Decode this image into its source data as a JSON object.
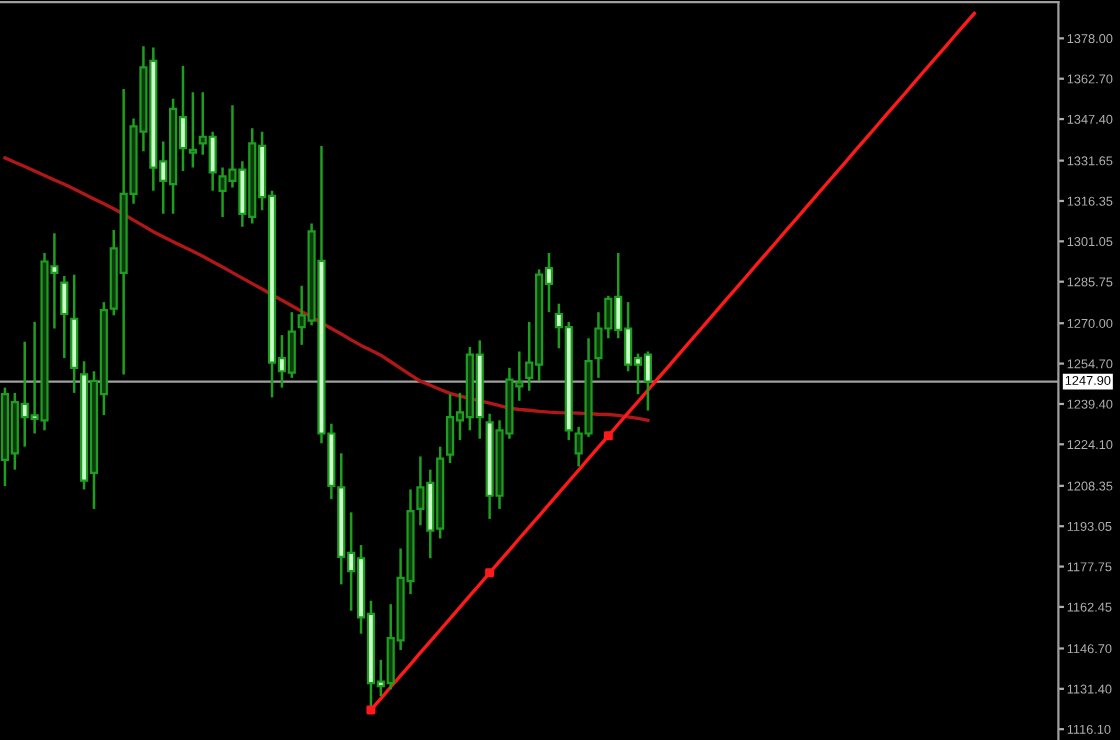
{
  "chart_data": {
    "type": "candlestick",
    "categories": [
      null,
      null,
      null,
      null,
      null,
      null,
      null,
      null,
      null,
      null,
      null,
      null,
      null,
      null,
      null,
      null,
      null,
      null,
      null,
      null,
      null,
      null,
      null,
      null,
      null,
      null,
      null,
      null,
      null,
      null,
      null,
      null,
      null,
      null,
      null,
      null,
      null,
      null,
      null,
      null,
      null,
      null,
      null,
      null,
      null,
      null,
      null,
      null,
      null,
      null,
      null,
      null,
      null,
      null,
      null,
      null,
      null,
      null,
      null,
      null,
      null,
      null,
      null,
      null,
      null,
      null,
      null,
      null,
      null,
      null,
      null,
      null,
      null,
      null,
      null,
      null,
      null,
      null,
      null,
      null,
      null,
      null,
      null,
      null,
      null,
      null,
      null,
      null,
      null,
      null,
      null,
      null,
      null,
      null,
      null,
      null,
      null,
      null,
      null,
      null,
      null,
      null,
      null,
      null,
      null,
      null,
      null
    ],
    "ohlc": [
      [
        1218.2,
        1245.6,
        1208.3,
        1243.1
      ],
      [
        1220.7,
        1243.6,
        1214.5,
        1240.1
      ],
      [
        1239.4,
        1263.0,
        1223.2,
        1234.4
      ],
      [
        1235.1,
        1270.5,
        1228.2,
        1233.7
      ],
      [
        1233.2,
        1296.6,
        1229.4,
        1293.4
      ],
      [
        1291.6,
        1304.1,
        1268.0,
        1289.1
      ],
      [
        1285.4,
        1287.9,
        1256.8,
        1273.5
      ],
      [
        1271.7,
        1288.4,
        1243.6,
        1253.1
      ],
      [
        1250.6,
        1255.6,
        1207.0,
        1210.3
      ],
      [
        1213.3,
        1251.8,
        1199.6,
        1248.1
      ],
      [
        1243.1,
        1278.0,
        1235.2,
        1275.0
      ],
      [
        1275.5,
        1305.3,
        1273.0,
        1298.4
      ],
      [
        1289.1,
        1358.8,
        1250.6,
        1319.0
      ],
      [
        1319.0,
        1347.6,
        1315.3,
        1344.6
      ],
      [
        1342.6,
        1375.0,
        1335.2,
        1367.0
      ],
      [
        1369.5,
        1374.5,
        1320.2,
        1329.0
      ],
      [
        1331.4,
        1338.9,
        1311.5,
        1324.0
      ],
      [
        1322.7,
        1355.1,
        1311.5,
        1351.3
      ],
      [
        1348.1,
        1367.5,
        1327.7,
        1336.4
      ],
      [
        1334.7,
        1357.6,
        1329.0,
        1335.7
      ],
      [
        1338.2,
        1357.6,
        1333.9,
        1340.7
      ],
      [
        1340.7,
        1342.6,
        1320.2,
        1327.2
      ],
      [
        1320.2,
        1329.0,
        1310.3,
        1325.7
      ],
      [
        1324.0,
        1352.6,
        1321.5,
        1328.2
      ],
      [
        1328.2,
        1331.4,
        1306.6,
        1311.5
      ],
      [
        1310.3,
        1343.9,
        1307.8,
        1338.2
      ],
      [
        1337.2,
        1342.6,
        1312.8,
        1317.8
      ],
      [
        1318.3,
        1320.2,
        1241.9,
        1255.1
      ],
      [
        1256.8,
        1265.5,
        1245.6,
        1251.8
      ],
      [
        1251.3,
        1274.2,
        1249.3,
        1266.8
      ],
      [
        1268.5,
        1284.2,
        1261.8,
        1273.0
      ],
      [
        1271.0,
        1307.8,
        1269.2,
        1304.8
      ],
      [
        1293.6,
        1337.2,
        1224.5,
        1228.2
      ],
      [
        1228.2,
        1231.9,
        1203.3,
        1208.3
      ],
      [
        1207.8,
        1220.7,
        1171.0,
        1181.4
      ],
      [
        1182.9,
        1198.3,
        1161.0,
        1176.0
      ],
      [
        1180.9,
        1185.9,
        1152.3,
        1158.5
      ],
      [
        1159.8,
        1164.8,
        1123.7,
        1133.6
      ],
      [
        1134.1,
        1142.4,
        1128.6,
        1132.4
      ],
      [
        1133.6,
        1163.5,
        1131.2,
        1150.6
      ],
      [
        1149.8,
        1184.6,
        1146.1,
        1173.5
      ],
      [
        1172.2,
        1207.0,
        1167.3,
        1198.8
      ],
      [
        1199.6,
        1219.5,
        1193.4,
        1207.8
      ],
      [
        1209.5,
        1214.5,
        1180.9,
        1191.4
      ],
      [
        1192.1,
        1223.2,
        1188.4,
        1218.7
      ],
      [
        1220.2,
        1243.1,
        1217.0,
        1234.4
      ],
      [
        1233.2,
        1243.6,
        1225.7,
        1236.2
      ],
      [
        1234.4,
        1261.0,
        1229.4,
        1258.1
      ],
      [
        1258.1,
        1263.5,
        1226.2,
        1234.4
      ],
      [
        1232.4,
        1235.7,
        1195.8,
        1204.6
      ],
      [
        1204.6,
        1233.2,
        1199.6,
        1229.4
      ],
      [
        1228.2,
        1253.1,
        1226.2,
        1248.6
      ],
      [
        1246.1,
        1259.3,
        1240.6,
        1247.6
      ],
      [
        1249.3,
        1270.5,
        1244.4,
        1255.1
      ],
      [
        1254.3,
        1290.4,
        1248.1,
        1288.4
      ],
      [
        1290.9,
        1296.6,
        1274.2,
        1284.9
      ],
      [
        1273.5,
        1277.4,
        1260.5,
        1268.5
      ],
      [
        1268.5,
        1270.5,
        1225.7,
        1229.4
      ],
      [
        1220.7,
        1230.7,
        1215.7,
        1228.2
      ],
      [
        1228.2,
        1264.3,
        1226.9,
        1255.6
      ],
      [
        1256.8,
        1274.2,
        1249.3,
        1268.0
      ],
      [
        1268.0,
        1280.4,
        1264.3,
        1279.2
      ],
      [
        1280.0,
        1296.6,
        1264.3,
        1267.5
      ],
      [
        1268.0,
        1278.0,
        1251.8,
        1254.3
      ],
      [
        1256.8,
        1258.5,
        1243.1,
        1254.3
      ],
      [
        1258.1,
        1259.3,
        1236.9,
        1247.9
      ],
      null,
      null,
      null,
      null,
      null,
      null,
      null,
      null,
      null,
      null,
      null,
      null,
      null,
      null,
      null,
      null,
      null,
      null,
      null,
      null,
      null,
      null,
      null,
      null,
      null,
      null,
      null,
      null,
      null,
      null,
      null,
      null,
      null,
      null,
      null,
      null,
      null,
      null,
      null,
      null,
      null
    ],
    "color": "#1e9e1e",
    "colors": [
      "#0f3a0f",
      "#0f3a0f",
      "#ccffcc",
      "#ccffcc",
      "#0f3a0f",
      "#ccffcc",
      "#ccffcc",
      "#ccffcc",
      "#ccffcc",
      "#0f3a0f",
      "#0f3a0f",
      "#0f3a0f",
      "#0f3a0f",
      "#0f3a0f",
      "#0f3a0f",
      "#ccffcc",
      "#ccffcc",
      "#0f3a0f",
      "#ccffcc",
      "#0f3a0f",
      "#0f3a0f",
      "#ccffcc",
      "#0f3a0f",
      "#0f3a0f",
      "#ccffcc",
      "#0f3a0f",
      "#ccffcc",
      "#ccffcc",
      "#ccffcc",
      "#0f3a0f",
      "#0f3a0f",
      "#0f3a0f",
      "#ccffcc",
      "#ccffcc",
      "#ccffcc",
      "#ccffcc",
      "#ccffcc",
      "#ccffcc",
      "#ccffcc",
      "#0f3a0f",
      "#0f3a0f",
      "#0f3a0f",
      "#0f3a0f",
      "#ccffcc",
      "#0f3a0f",
      "#0f3a0f",
      "#0f3a0f",
      "#0f3a0f",
      "#ccffcc",
      "#ccffcc",
      "#0f3a0f",
      "#0f3a0f",
      "#0f3a0f",
      "#0f3a0f",
      "#0f3a0f",
      "#ccffcc",
      "#ccffcc",
      "#ccffcc",
      "#0f3a0f",
      "#0f3a0f",
      "#0f3a0f",
      "#0f3a0f",
      "#ccffcc",
      "#ccffcc",
      "#ccffcc",
      "#ccffcc",
      null,
      null,
      null,
      null,
      null,
      null,
      null,
      null,
      null,
      null,
      null,
      null,
      null,
      null,
      null,
      null,
      null,
      null,
      null,
      null,
      null,
      null,
      null,
      null,
      null,
      null,
      null,
      null,
      null,
      null,
      null,
      null,
      null,
      null,
      null,
      null,
      null,
      null,
      null,
      null,
      null
    ],
    "series": [
      {
        "type": "line",
        "color": "#b01818",
        "values": [
          1332.7,
          1331.0,
          1329.4,
          1327.7,
          1326.0,
          1324.3,
          1322.7,
          1320.9,
          1319.0,
          1317.1,
          1315.3,
          1313.4,
          1311.3,
          1309.1,
          1306.9,
          1304.7,
          1302.8,
          1300.9,
          1299.1,
          1297.3,
          1295.4,
          1293.3,
          1291.3,
          1289.2,
          1287.1,
          1285.0,
          1283.0,
          1280.8,
          1278.7,
          1276.6,
          1274.5,
          1272.3,
          1270.2,
          1268.0,
          1265.9,
          1263.7,
          1261.6,
          1259.8,
          1257.9,
          1255.4,
          1252.9,
          1250.4,
          1248.0,
          1246.5,
          1244.9,
          1243.4,
          1242.4,
          1241.5,
          1240.6,
          1239.7,
          1238.8,
          1237.8,
          1237.3,
          1237.0,
          1236.6,
          1236.3,
          1236.1,
          1236.0,
          1235.9,
          1235.7,
          1235.5,
          1235.4,
          1235.1,
          1234.5,
          1233.9,
          1233.2,
          null,
          null,
          null,
          null,
          null,
          null,
          null,
          null,
          null,
          null,
          null,
          null,
          null,
          null,
          null,
          null,
          null,
          null,
          null,
          null,
          null,
          null,
          null,
          null,
          null,
          null,
          null,
          null,
          null,
          null,
          null,
          null,
          null,
          null,
          null,
          null,
          null,
          null,
          null,
          null,
          null
        ]
      },
      {
        "type": "line",
        "color": "#ff1a1a",
        "values": [
          null,
          null,
          null,
          null,
          null,
          null,
          null,
          null,
          null,
          null,
          null,
          null,
          null,
          null,
          null,
          null,
          null,
          null,
          null,
          null,
          null,
          null,
          null,
          null,
          null,
          null,
          null,
          null,
          null,
          null,
          null,
          null,
          null,
          null,
          null,
          null,
          null,
          1123.4,
          1127.7,
          1132.1,
          1136.4,
          1140.7,
          1145.1,
          1149.4,
          1153.7,
          1158.0,
          1162.4,
          1166.7,
          1171.0,
          1175.4,
          1179.7,
          1184.0,
          1188.4,
          1192.7,
          1197.0,
          1201.3,
          1205.7,
          1210.0,
          1214.3,
          1218.7,
          1223.0,
          1227.3,
          1231.7,
          1236.0,
          1240.3,
          1244.6,
          1249.0,
          1253.3,
          1257.6,
          1262.0,
          1266.3,
          1270.6,
          1275.0,
          1279.3,
          1283.6,
          1287.9,
          1292.3,
          1296.6,
          1300.9,
          1305.3,
          1309.6,
          1313.9,
          1318.3,
          1322.6,
          1326.9,
          1331.2,
          1335.6,
          1339.9,
          1344.2,
          1348.6,
          1352.9,
          1357.2,
          1361.6,
          1365.9,
          1370.2,
          1374.5,
          1378.9,
          1383.2,
          1387.5,
          null,
          null,
          null,
          null,
          null,
          null,
          null,
          null
        ]
      },
      {
        "type": "scatter",
        "color": "#ff1a1a",
        "marker": "square",
        "values": [
          null,
          null,
          null,
          null,
          null,
          null,
          null,
          null,
          null,
          null,
          null,
          null,
          null,
          null,
          null,
          null,
          null,
          null,
          null,
          null,
          null,
          null,
          null,
          null,
          null,
          null,
          null,
          null,
          null,
          null,
          null,
          null,
          null,
          null,
          null,
          null,
          null,
          1123.4,
          null,
          null,
          null,
          null,
          null,
          null,
          null,
          null,
          null,
          null,
          null,
          1175.4,
          null,
          null,
          null,
          null,
          null,
          null,
          null,
          null,
          null,
          null,
          null,
          1227.3,
          null,
          null,
          null,
          null,
          null,
          null,
          null,
          null,
          null,
          null,
          null,
          null,
          null,
          null,
          null,
          null,
          null,
          null,
          null,
          null,
          null,
          null,
          null,
          null,
          null,
          null,
          null,
          null,
          null,
          null,
          null,
          null,
          null,
          null,
          null,
          null,
          null,
          null,
          null,
          null,
          null,
          null,
          null,
          null,
          null
        ]
      }
    ],
    "ref_lines": [
      {
        "axis": "y",
        "value": 1247.9,
        "label": "1247.90",
        "color": "#a0a0a0"
      }
    ],
    "ylim": [
      1112,
      1391.7
    ],
    "yticks": [
      {
        "value": 1378,
        "label": "1378.00"
      },
      {
        "value": 1362.7,
        "label": "1362.70"
      },
      {
        "value": 1347.4,
        "label": "1347.40"
      },
      {
        "value": 1331.65,
        "label": "1331.65"
      },
      {
        "value": 1316.35,
        "label": "1316.35"
      },
      {
        "value": 1301.05,
        "label": "1301.05"
      },
      {
        "value": 1285.75,
        "label": "1285.75"
      },
      {
        "value": 1270,
        "label": "1270.00"
      },
      {
        "value": 1254.7,
        "label": "1254.70"
      },
      {
        "value": 1239.4,
        "label": "1239.40"
      },
      {
        "value": 1224.1,
        "label": "1224.10"
      },
      {
        "value": 1208.35,
        "label": "1208.35"
      },
      {
        "value": 1193.05,
        "label": "1193.05"
      },
      {
        "value": 1177.75,
        "label": "1177.75"
      },
      {
        "value": 1162.45,
        "label": "1162.45"
      },
      {
        "value": 1146.7,
        "label": "1146.70"
      },
      {
        "value": 1131.4,
        "label": "1131.40"
      },
      {
        "value": 1116.1,
        "label": "1116.10"
      }
    ],
    "tick_labels": "y",
    "grid": false,
    "legend": false
  }
}
